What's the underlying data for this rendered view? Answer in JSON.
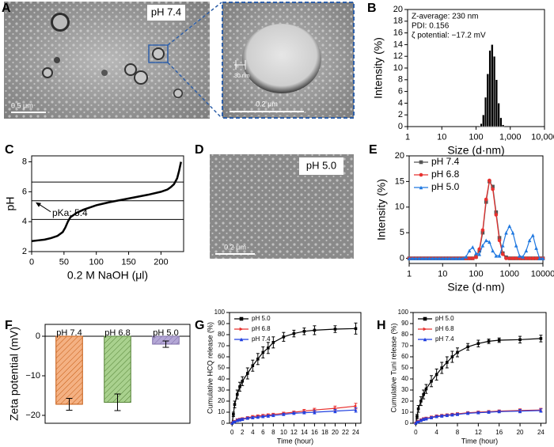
{
  "panel_a": {
    "label": "A",
    "tag": "pH 7.4",
    "scale_bar": "0.5 μm",
    "zoom_thickness": "30 nm",
    "zoom_scale_bar": "0.2 μm"
  },
  "panel_d": {
    "label": "D",
    "tag": "pH 5.0",
    "scale_bar": "0.2 μm"
  },
  "chart_data": [
    {
      "type": "bar",
      "label": "B",
      "xscale": "log",
      "xlabel": "Size (d·nm)",
      "ylabel": "Intensity (%)",
      "annotations": [
        "Z-average: 230 nm",
        "PDI: 0.156",
        "ζ potential: −17.2 mV"
      ],
      "x": [
        142,
        164,
        190,
        220,
        255,
        295,
        342,
        396,
        459,
        531,
        615
      ],
      "values": [
        0.5,
        2,
        5,
        9,
        13,
        14,
        12,
        8,
        4,
        1.5,
        0.3
      ],
      "color": "#000000",
      "xlim": [
        1,
        10000
      ],
      "xticks": [
        1,
        10,
        100,
        {
          "value": 1000,
          "label": "1,000"
        },
        {
          "value": 10000,
          "label": "10,000"
        }
      ],
      "ylim": [
        0,
        20
      ],
      "yticks": [
        0,
        2,
        4,
        6,
        8,
        10,
        12,
        14,
        16,
        18,
        20
      ]
    },
    {
      "type": "line",
      "label": "C",
      "xlabel": "0.2 M NaOH (μl)",
      "ylabel": "pH",
      "annotation": "pKa: 5.4",
      "x": [
        0,
        10,
        20,
        30,
        40,
        48,
        52,
        56,
        60,
        70,
        80,
        100,
        120,
        150,
        180,
        200,
        210,
        215,
        220,
        225,
        228,
        231
      ],
      "values": [
        2.7,
        2.75,
        2.8,
        2.9,
        3.05,
        3.3,
        3.6,
        4.0,
        4.3,
        4.6,
        4.8,
        5.1,
        5.3,
        5.55,
        5.8,
        6.0,
        6.15,
        6.3,
        6.5,
        6.9,
        7.4,
        8.0
      ],
      "color": "#000000",
      "hlines": [
        6.65,
        5.4,
        4.15
      ],
      "xlim": [
        0,
        235
      ],
      "xticks": [
        0,
        50,
        100,
        150,
        200
      ],
      "ylim": [
        2,
        8.4
      ],
      "yticks": [
        2,
        4,
        6,
        8
      ]
    },
    {
      "type": "line",
      "label": "E",
      "xscale": "log",
      "xlabel": "Size (d·nm)",
      "ylabel": "Intensity (%)",
      "legend": "upper left",
      "x": [
        1,
        1.26,
        1.58,
        2,
        2.51,
        3.16,
        3.98,
        5.01,
        6.31,
        7.94,
        10,
        12.6,
        15.8,
        20,
        25.1,
        31.6,
        39.8,
        50.1,
        63.1,
        79.4,
        100,
        126,
        158,
        200,
        251,
        316,
        398,
        501,
        631,
        794,
        1000,
        1260,
        1580,
        2000,
        2510,
        3160,
        3980,
        5010,
        6310,
        7940,
        10000
      ],
      "series": [
        {
          "name": "pH 7.4",
          "color": "#555555",
          "marker": "square",
          "values": [
            0,
            0,
            0,
            0,
            0,
            0,
            0,
            0,
            0,
            0,
            0,
            0,
            0,
            0,
            0,
            0,
            0,
            0,
            0,
            0,
            0.3,
            1.5,
            5,
            11,
            15,
            14,
            9,
            4,
            1,
            0.2,
            0,
            0,
            0,
            0,
            0,
            0,
            0,
            0,
            0,
            0,
            0
          ]
        },
        {
          "name": "pH 6.8",
          "color": "#e8312f",
          "marker": "circle",
          "values": [
            0,
            0,
            0,
            0,
            0,
            0,
            0,
            0,
            0,
            0,
            0,
            0,
            0,
            0,
            0,
            0,
            0,
            0,
            0,
            0,
            0.2,
            1.8,
            5.5,
            11.5,
            15.2,
            13.5,
            8.5,
            3.5,
            0.8,
            0,
            0,
            0,
            0,
            0,
            0,
            0,
            0,
            0,
            0,
            0,
            0
          ]
        },
        {
          "name": "pH 5.0",
          "color": "#1f78e0",
          "marker": "triangle",
          "values": [
            0,
            0,
            0,
            0,
            0,
            0,
            0,
            0,
            0,
            0,
            0,
            0,
            0,
            0,
            0,
            0,
            0,
            0.3,
            1.5,
            2.2,
            1,
            0.8,
            2.5,
            3.5,
            3.2,
            1.5,
            0.5,
            0.5,
            2.5,
            5,
            6.3,
            5,
            2.5,
            0.5,
            0.3,
            1.5,
            3.5,
            4.5,
            2,
            0,
            0
          ]
        }
      ],
      "xlim": [
        1,
        10000
      ],
      "xticks": [
        1,
        10,
        100,
        1000,
        10000
      ],
      "ylim": [
        -1,
        20
      ],
      "yticks": [
        0,
        5,
        10,
        15,
        20
      ]
    },
    {
      "type": "bar",
      "label": "F",
      "ylabel": "Zeta potential (mV)",
      "categories": [
        "pH 7.4",
        "pH 6.8",
        "pH 5.0"
      ],
      "values": [
        -17.2,
        -16.7,
        -2.0
      ],
      "errors": [
        1.5,
        2.1,
        0.8
      ],
      "colors": [
        "#f4b183",
        "#a9d18e",
        "#b4a7d6"
      ],
      "edge_colors": [
        "#c55a11",
        "#548235",
        "#7f6fa8"
      ],
      "ylim": [
        -22,
        3
      ],
      "yticks": [
        {
          "value": -20,
          "label": "−20"
        },
        {
          "value": -10,
          "label": "−10"
        },
        0
      ]
    },
    {
      "type": "line",
      "label": "G",
      "xlabel": "Time (hour)",
      "ylabel": "Cumulative HCQ release (%)",
      "legend": "upper left",
      "x": [
        0,
        0.25,
        0.5,
        1,
        1.5,
        2,
        3,
        4,
        5,
        6,
        7,
        8,
        10,
        12,
        14,
        16,
        20,
        24
      ],
      "series": [
        {
          "name": "pH 5.0",
          "color": "#000000",
          "marker": "square",
          "values": [
            0,
            8,
            17,
            26,
            33,
            38,
            45,
            52,
            58,
            64,
            68,
            73,
            78,
            81,
            83,
            84,
            85,
            85.5
          ],
          "errors": [
            0,
            2,
            3,
            4,
            4,
            4,
            5,
            5,
            5,
            5,
            5,
            5,
            4,
            3,
            3,
            4,
            3,
            5
          ]
        },
        {
          "name": "pH 6.8",
          "color": "#e8312f",
          "marker": "triangle-right",
          "values": [
            0,
            1,
            2,
            3,
            3.5,
            4,
            5,
            6,
            6.5,
            7,
            7.5,
            8,
            9,
            10,
            11,
            12,
            13.5,
            15.5
          ],
          "errors": [
            0,
            0.5,
            0.5,
            1,
            1,
            1,
            1,
            1,
            1,
            1,
            1,
            1,
            1,
            1,
            1.5,
            1.5,
            2,
            2.5
          ]
        },
        {
          "name": "pH 7.4",
          "color": "#1f3fe0",
          "marker": "triangle",
          "values": [
            0,
            1,
            1.5,
            2.5,
            3,
            3.5,
            4.5,
            5,
            5.5,
            6,
            6.5,
            7,
            8,
            9,
            9.5,
            10,
            11,
            12
          ],
          "errors": [
            0,
            0.5,
            0.5,
            1,
            1,
            1,
            1,
            1,
            1,
            1,
            1,
            1,
            1,
            1,
            1,
            1.5,
            1.5,
            2
          ]
        }
      ],
      "xlim": [
        -0.5,
        25
      ],
      "xticks": [
        0,
        2,
        4,
        6,
        8,
        10,
        12,
        14,
        16,
        18,
        20,
        22,
        24
      ],
      "ylim": [
        0,
        100
      ],
      "yticks": [
        0,
        10,
        20,
        30,
        40,
        50,
        60,
        70,
        80,
        90,
        100
      ]
    },
    {
      "type": "line",
      "label": "H",
      "xlabel": "Time (hour)",
      "ylabel": "Cumulative Tuni release (%)",
      "legend": "upper left",
      "x": [
        0,
        0.25,
        0.5,
        1,
        1.5,
        2,
        3,
        4,
        5,
        6,
        7,
        8,
        10,
        12,
        14,
        16,
        20,
        24
      ],
      "series": [
        {
          "name": "pH 5.0",
          "color": "#000000",
          "marker": "square",
          "values": [
            0,
            6,
            13,
            20,
            26,
            31,
            38,
            44,
            50,
            55,
            60,
            64,
            69,
            72,
            74,
            75,
            75.5,
            76.5
          ],
          "errors": [
            0,
            2,
            3,
            4,
            4,
            4,
            5,
            5,
            5,
            5,
            5,
            4,
            3,
            3,
            2,
            2,
            3,
            3
          ]
        },
        {
          "name": "pH 6.8",
          "color": "#e8312f",
          "marker": "triangle-right",
          "values": [
            0,
            1,
            2,
            3,
            4,
            4.5,
            5.5,
            6.5,
            7,
            7.5,
            8,
            8.5,
            9.5,
            10,
            10.5,
            11,
            11.5,
            12
          ],
          "errors": [
            0,
            0.5,
            0.5,
            1,
            1,
            1,
            1,
            1,
            1,
            1,
            1,
            1,
            1,
            1,
            1,
            1,
            1.5,
            1.5
          ]
        },
        {
          "name": "pH 7.4",
          "color": "#1f3fe0",
          "marker": "triangle",
          "values": [
            0,
            1,
            1.5,
            2.5,
            3.5,
            4,
            5,
            6,
            6.5,
            7,
            7.5,
            8,
            9,
            9.5,
            10,
            10.5,
            11,
            11.5
          ],
          "errors": [
            0,
            0.5,
            0.5,
            1,
            1,
            1,
            1,
            1,
            1,
            1,
            1,
            1,
            1,
            1,
            1,
            1,
            1.5,
            1.5
          ]
        }
      ],
      "xlim": [
        -0.5,
        25
      ],
      "xticks": [
        0,
        4,
        8,
        12,
        16,
        20,
        24
      ],
      "ylim": [
        0,
        100
      ],
      "yticks": [
        0,
        10,
        20,
        30,
        40,
        50,
        60,
        70,
        80,
        90,
        100
      ]
    }
  ]
}
